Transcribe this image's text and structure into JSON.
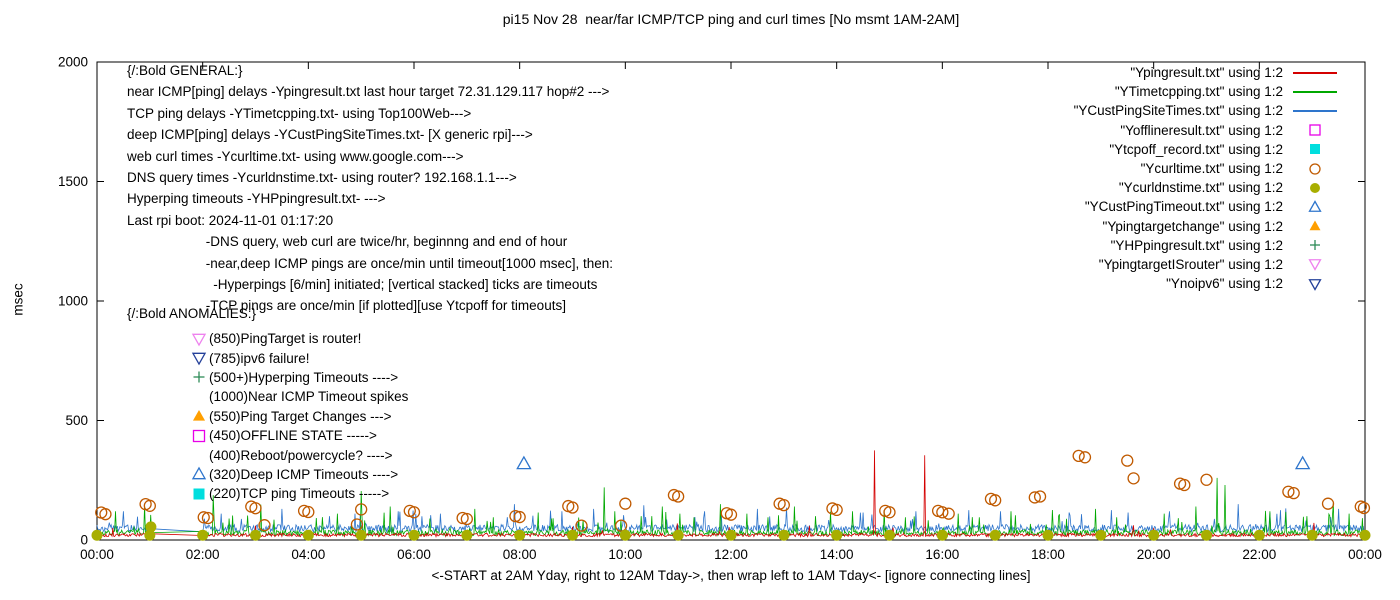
{
  "chart_data": {
    "type": "line",
    "title": "pi15 Nov 28  near/far ICMP/TCP ping and curl times [No msmt 1AM-2AM]",
    "ylabel": "msec",
    "xlabel": "<-START at 2AM Yday, right to 12AM Tday->, then wrap left to 1AM Tday<- [ignore connecting lines]",
    "xlim": [
      0,
      24
    ],
    "ylim": [
      0,
      2000
    ],
    "grid": false,
    "legend_position": "top-right",
    "y_ticks": [
      0,
      500,
      1000,
      1500,
      2000
    ],
    "x_ticks": [
      {
        "pos": 0,
        "label": "00:00"
      },
      {
        "pos": 2,
        "label": "02:00"
      },
      {
        "pos": 4,
        "label": "04:00"
      },
      {
        "pos": 6,
        "label": "06:00"
      },
      {
        "pos": 8,
        "label": "08:00"
      },
      {
        "pos": 10,
        "label": "10:00"
      },
      {
        "pos": 12,
        "label": "12:00"
      },
      {
        "pos": 14,
        "label": "14:00"
      },
      {
        "pos": 16,
        "label": "16:00"
      },
      {
        "pos": 18,
        "label": "18:00"
      },
      {
        "pos": 20,
        "label": "20:00"
      },
      {
        "pos": 22,
        "label": "22:00"
      },
      {
        "pos": 24,
        "label": "00:00"
      }
    ],
    "no_measurement_gap_hours": [
      1.05,
      2.0
    ],
    "series": [
      {
        "name": "\"Ypingresult.txt\" using 1:2",
        "style": "line",
        "color": "#d40000",
        "baseline": {
          "seed": 101,
          "base": 14,
          "jitter": 14,
          "spike_chance": 0.012,
          "spike_extra": 45
        },
        "spikes": [
          [
            3.0,
            60
          ],
          [
            9.0,
            55
          ],
          [
            14.71,
            375
          ],
          [
            15.67,
            355
          ],
          [
            20.0,
            50
          ]
        ]
      },
      {
        "name": "\"YTimetcpping.txt\" using 1:2",
        "style": "line",
        "color": "#00a800",
        "baseline": {
          "seed": 202,
          "base": 18,
          "jitter": 24,
          "spike_chance": 0.06,
          "spike_extra": 90
        },
        "spikes": [
          [
            0.35,
            120
          ],
          [
            0.9,
            148
          ],
          [
            1.02,
            105
          ],
          [
            2.2,
            188
          ],
          [
            2.5,
            90
          ],
          [
            3.1,
            148
          ],
          [
            3.35,
            85
          ],
          [
            4.15,
            92
          ],
          [
            4.55,
            110
          ],
          [
            5.0,
            205
          ],
          [
            5.55,
            140
          ],
          [
            6.3,
            90
          ],
          [
            7.15,
            130
          ],
          [
            7.5,
            95
          ],
          [
            8.35,
            115
          ],
          [
            8.6,
            90
          ],
          [
            9.6,
            220
          ],
          [
            9.8,
            120
          ],
          [
            10.3,
            100
          ],
          [
            10.7,
            140
          ],
          [
            11.3,
            95
          ],
          [
            11.8,
            150
          ],
          [
            12.3,
            110
          ],
          [
            12.7,
            95
          ],
          [
            13.2,
            140
          ],
          [
            13.6,
            100
          ],
          [
            14.3,
            120
          ],
          [
            15.3,
            95
          ],
          [
            16.3,
            110
          ],
          [
            16.7,
            95
          ],
          [
            17.3,
            120
          ],
          [
            18.2,
            100
          ],
          [
            18.9,
            130
          ],
          [
            19.3,
            95
          ],
          [
            20.2,
            110
          ],
          [
            20.8,
            140
          ],
          [
            21.2,
            260
          ],
          [
            21.35,
            230
          ],
          [
            22.2,
            120
          ],
          [
            22.9,
            100
          ],
          [
            23.4,
            155
          ],
          [
            23.7,
            110
          ]
        ]
      },
      {
        "name": "\"YCustPingSiteTimes.txt\" using 1:2",
        "style": "line",
        "color": "#2e75cc",
        "baseline": {
          "seed": 303,
          "base": 34,
          "jitter": 30,
          "spike_chance": 0.05,
          "spike_extra": 70
        },
        "spikes": [
          [
            0.5,
            120
          ],
          [
            2.35,
            110
          ],
          [
            3.5,
            130
          ],
          [
            4.4,
            100
          ],
          [
            5.7,
            120
          ],
          [
            6.5,
            110
          ],
          [
            7.9,
            150
          ],
          [
            8.8,
            120
          ],
          [
            9.4,
            130
          ],
          [
            10.35,
            145
          ],
          [
            11.5,
            120
          ],
          [
            12.5,
            130
          ],
          [
            13.05,
            135
          ],
          [
            14.5,
            115
          ],
          [
            15.5,
            120
          ],
          [
            16.5,
            125
          ],
          [
            17.1,
            120
          ],
          [
            18.4,
            115
          ],
          [
            19.2,
            125
          ],
          [
            20.3,
            120
          ],
          [
            21.6,
            150
          ],
          [
            22.4,
            125
          ],
          [
            23.5,
            130
          ]
        ]
      },
      {
        "name": "\"Yofflineresult.txt\" using 1:2",
        "style": "square-open",
        "color": "#e800e8",
        "points": []
      },
      {
        "name": "\"Ytcpoff_record.txt\" using 1:2",
        "style": "square-filled",
        "color": "#00dede",
        "points": []
      },
      {
        "name": "\"Ycurltime.txt\" using 1:2",
        "style": "circle-open",
        "color": "#c05a00",
        "points": [
          [
            0.08,
            115
          ],
          [
            0.16,
            108
          ],
          [
            0.92,
            150
          ],
          [
            1.0,
            143
          ],
          [
            2.02,
            95
          ],
          [
            2.1,
            92
          ],
          [
            2.92,
            140
          ],
          [
            3.0,
            133
          ],
          [
            3.17,
            62
          ],
          [
            3.92,
            122
          ],
          [
            4.0,
            117
          ],
          [
            4.92,
            65
          ],
          [
            5.0,
            128
          ],
          [
            5.92,
            122
          ],
          [
            6.0,
            116
          ],
          [
            6.92,
            92
          ],
          [
            7.0,
            88
          ],
          [
            7.92,
            100
          ],
          [
            8.0,
            96
          ],
          [
            8.92,
            142
          ],
          [
            9.0,
            136
          ],
          [
            9.17,
            60
          ],
          [
            9.92,
            60
          ],
          [
            10.0,
            152
          ],
          [
            10.92,
            188
          ],
          [
            11.0,
            182
          ],
          [
            11.92,
            112
          ],
          [
            12.0,
            106
          ],
          [
            12.92,
            152
          ],
          [
            13.0,
            146
          ],
          [
            13.92,
            132
          ],
          [
            14.0,
            126
          ],
          [
            14.92,
            122
          ],
          [
            15.0,
            116
          ],
          [
            15.92,
            122
          ],
          [
            16.0,
            116
          ],
          [
            16.12,
            110
          ],
          [
            16.92,
            172
          ],
          [
            17.0,
            166
          ],
          [
            17.75,
            178
          ],
          [
            17.85,
            182
          ],
          [
            18.58,
            352
          ],
          [
            18.7,
            346
          ],
          [
            19.5,
            332
          ],
          [
            19.62,
            258
          ],
          [
            20.5,
            236
          ],
          [
            20.58,
            230
          ],
          [
            21.0,
            252
          ],
          [
            22.55,
            202
          ],
          [
            22.65,
            196
          ],
          [
            23.3,
            152
          ],
          [
            23.92,
            140
          ],
          [
            23.98,
            134
          ]
        ]
      },
      {
        "name": "\"Ycurldnstime.txt\" using 1:2",
        "style": "circle-filled",
        "color": "#a8ae00",
        "points": [
          [
            0,
            20
          ],
          [
            1,
            20
          ],
          [
            1.02,
            55
          ],
          [
            2,
            20
          ],
          [
            3,
            20
          ],
          [
            4,
            20
          ],
          [
            5,
            20
          ],
          [
            6,
            20
          ],
          [
            7,
            20
          ],
          [
            8,
            20
          ],
          [
            9,
            20
          ],
          [
            10,
            20
          ],
          [
            11,
            20
          ],
          [
            12,
            20
          ],
          [
            13,
            20
          ],
          [
            14,
            20
          ],
          [
            15,
            20
          ],
          [
            16,
            20
          ],
          [
            17,
            20
          ],
          [
            18,
            20
          ],
          [
            19,
            20
          ],
          [
            20,
            20
          ],
          [
            21,
            20
          ],
          [
            22,
            20
          ],
          [
            23,
            20
          ],
          [
            24,
            20
          ]
        ]
      },
      {
        "name": "\"YCustPingTimeout.txt\" using 1:2",
        "style": "triangle-open",
        "color": "#2e75cc",
        "points": [
          [
            8.08,
            320
          ],
          [
            22.82,
            320
          ]
        ]
      },
      {
        "name": "\"Ypingtargetchange\" using 1:2",
        "style": "triangle-filled",
        "color": "#ff9f00",
        "points": []
      },
      {
        "name": "\"YHPpingresult.txt\" using 1:2",
        "style": "plus",
        "color": "#2e8b57",
        "points": []
      },
      {
        "name": "\"YpingtargetISrouter\" using 1:2",
        "style": "triangle-down-open",
        "color": "#ee82ee",
        "points": []
      },
      {
        "name": "\"Ynoipv6\" using 1:2",
        "style": "triangle-down-open",
        "color": "#24409a",
        "points": []
      }
    ]
  },
  "annotations": {
    "general_lines": [
      "{/:Bold GENERAL:}",
      "near ICMP[ping] delays -Ypingresult.txt last hour target 72.31.129.117 hop#2 --->",
      "TCP ping delays -YTimetcpping.txt- using Top100Web--->",
      "deep ICMP[ping] delays -YCustPingSiteTimes.txt- [X generic rpi]--->",
      "web curl times -Ycurltime.txt- using www.google.com--->",
      "DNS query times -Ycurldnstime.txt- using router? 192.168.1.1--->",
      "Hyperping timeouts -YHPpingresult.txt- --->",
      "Last rpi boot: 2024-11-01 01:17:20",
      "                     -DNS query, web curl are twice/hr, beginnng and end of hour",
      "                     -near,deep ICMP pings are once/min until timeout[1000 msec], then:",
      "                       -Hyperpings [6/min] initiated; [vertical stacked] ticks are timeouts",
      "                     -TCP pings are once/min [if plotted][use Ytcpoff for timeouts]"
    ],
    "anomalies_title": "{/:Bold ANOMALIES:}",
    "anomalies": [
      {
        "marker": "triangle-down-open",
        "color": "#ee82ee",
        "text": "(850)PingTarget is router!"
      },
      {
        "marker": "triangle-down-open",
        "color": "#24409a",
        "text": "(785)ipv6 failure!"
      },
      {
        "marker": "plus",
        "color": "#2e8b57",
        "text": "(500+)Hyperping Timeouts ---->"
      },
      {
        "marker": null,
        "color": null,
        "text": "(1000)Near ICMP Timeout spikes"
      },
      {
        "marker": "triangle-filled",
        "color": "#ff9f00",
        "text": "(550)Ping Target Changes --->"
      },
      {
        "marker": "square-open",
        "color": "#e800e8",
        "text": "(450)OFFLINE STATE ----->"
      },
      {
        "marker": null,
        "color": null,
        "text": "(400)Reboot/powercycle? ---->"
      },
      {
        "marker": "triangle-open",
        "color": "#2e75cc",
        "text": "(320)Deep ICMP Timeouts ---->"
      },
      {
        "marker": "square-filled",
        "color": "#00dede",
        "text": "(220)TCP ping Timeouts ----->"
      }
    ]
  }
}
